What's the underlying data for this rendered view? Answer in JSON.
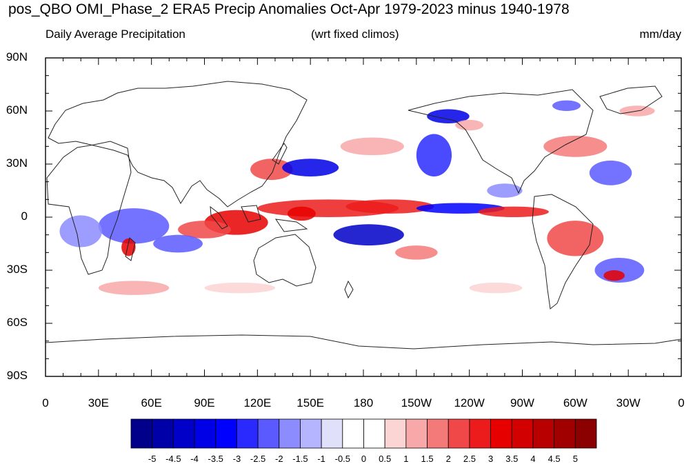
{
  "title": "pos_QBO OMI_Phase_2 ERA5 Precip Anomalies Oct-Apr 1979-2023 minus 1940-1978",
  "subtitle_left": "Daily Average Precipitation",
  "subtitle_center": "(wrt fixed climos)",
  "subtitle_right": "mm/day",
  "lat_ticks": [
    {
      "label": "90N",
      "lat": 90
    },
    {
      "label": "60N",
      "lat": 60
    },
    {
      "label": "30N",
      "lat": 30
    },
    {
      "label": "0",
      "lat": 0
    },
    {
      "label": "30S",
      "lat": -30
    },
    {
      "label": "60S",
      "lat": -60
    },
    {
      "label": "90S",
      "lat": -90
    }
  ],
  "lon_ticks": [
    {
      "label": "0",
      "lon": 0
    },
    {
      "label": "30E",
      "lon": 30
    },
    {
      "label": "60E",
      "lon": 60
    },
    {
      "label": "90E",
      "lon": 90
    },
    {
      "label": "120E",
      "lon": 120
    },
    {
      "label": "150E",
      "lon": 150
    },
    {
      "label": "180",
      "lon": 180
    },
    {
      "label": "150W",
      "lon": 210
    },
    {
      "label": "120W",
      "lon": 240
    },
    {
      "label": "90W",
      "lon": 270
    },
    {
      "label": "60W",
      "lon": 300
    },
    {
      "label": "30W",
      "lon": 330
    },
    {
      "label": "0",
      "lon": 360
    }
  ],
  "colorbar": {
    "colors": [
      "#00008b",
      "#0000a8",
      "#0000c8",
      "#0000e6",
      "#0000ff",
      "#2a2aff",
      "#5a5aff",
      "#8c8cff",
      "#b4b4ff",
      "#e0e0fa",
      "#ffffff",
      "#ffffff",
      "#fbd4d4",
      "#f8a8a8",
      "#f47a7a",
      "#f04848",
      "#ec1c1c",
      "#e60000",
      "#d20000",
      "#b80000",
      "#a00000",
      "#8b0000"
    ],
    "labels": [
      "-5",
      "-4.5",
      "-4",
      "-3.5",
      "-3",
      "-2.5",
      "-2",
      "-1.5",
      "-1",
      "-0.5",
      "0",
      "0.5",
      "1",
      "1.5",
      "2",
      "2.5",
      "3",
      "3.5",
      "4",
      "4.5",
      "5"
    ]
  },
  "anomalies": [
    {
      "lon": 160,
      "lat": 5,
      "rx": 40,
      "ry": 5,
      "color": "#ec1c1c"
    },
    {
      "lon": 195,
      "lat": 6,
      "rx": 25,
      "ry": 4,
      "color": "#ec1c1c"
    },
    {
      "lon": 108,
      "lat": -3,
      "rx": 18,
      "ry": 7,
      "color": "#e60000"
    },
    {
      "lon": 90,
      "lat": -7,
      "rx": 15,
      "ry": 5,
      "color": "#f04848"
    },
    {
      "lon": 128,
      "lat": 27,
      "rx": 12,
      "ry": 6,
      "color": "#f04848"
    },
    {
      "lon": 150,
      "lat": 28,
      "rx": 16,
      "ry": 5,
      "color": "#0000e6"
    },
    {
      "lon": 183,
      "lat": -10,
      "rx": 20,
      "ry": 6,
      "color": "#0000c8"
    },
    {
      "lon": 235,
      "lat": 5,
      "rx": 25,
      "ry": 3,
      "color": "#0000ff"
    },
    {
      "lon": 265,
      "lat": 3,
      "rx": 20,
      "ry": 3,
      "color": "#ec1c1c"
    },
    {
      "lon": 220,
      "lat": 35,
      "rx": 10,
      "ry": 12,
      "color": "#2a2aff"
    },
    {
      "lon": 228,
      "lat": 57,
      "rx": 12,
      "ry": 4,
      "color": "#0000e6"
    },
    {
      "lon": 50,
      "lat": -5,
      "rx": 20,
      "ry": 10,
      "color": "#5a5aff"
    },
    {
      "lon": 20,
      "lat": -8,
      "rx": 12,
      "ry": 9,
      "color": "#8c8cff"
    },
    {
      "lon": 47,
      "lat": -17,
      "rx": 4,
      "ry": 5,
      "color": "#e60000"
    },
    {
      "lon": 75,
      "lat": -15,
      "rx": 14,
      "ry": 5,
      "color": "#5a5aff"
    },
    {
      "lon": 300,
      "lat": -12,
      "rx": 16,
      "ry": 10,
      "color": "#f04848"
    },
    {
      "lon": 325,
      "lat": -30,
      "rx": 14,
      "ry": 7,
      "color": "#5a5aff"
    },
    {
      "lon": 322,
      "lat": -33,
      "rx": 6,
      "ry": 3,
      "color": "#e60000"
    },
    {
      "lon": 320,
      "lat": 25,
      "rx": 12,
      "ry": 7,
      "color": "#5a5aff"
    },
    {
      "lon": 300,
      "lat": 40,
      "rx": 18,
      "ry": 6,
      "color": "#f47a7a"
    },
    {
      "lon": 145,
      "lat": 2,
      "rx": 8,
      "ry": 4,
      "color": "#e60000"
    },
    {
      "lon": 210,
      "lat": -20,
      "rx": 12,
      "ry": 4,
      "color": "#f47a7a"
    },
    {
      "lon": 50,
      "lat": -40,
      "rx": 20,
      "ry": 4,
      "color": "#f8a8a8"
    },
    {
      "lon": 240,
      "lat": 52,
      "rx": 8,
      "ry": 3,
      "color": "#f8a8a8"
    },
    {
      "lon": 335,
      "lat": 60,
      "rx": 10,
      "ry": 3,
      "color": "#f8a8a8"
    },
    {
      "lon": 185,
      "lat": 40,
      "rx": 18,
      "ry": 5,
      "color": "#f8a8a8"
    },
    {
      "lon": 260,
      "lat": 15,
      "rx": 10,
      "ry": 4,
      "color": "#8c8cff"
    },
    {
      "lon": 295,
      "lat": 63,
      "rx": 8,
      "ry": 3,
      "color": "#5a5aff"
    },
    {
      "lon": 255,
      "lat": -40,
      "rx": 15,
      "ry": 3,
      "color": "#fbd4d4"
    },
    {
      "lon": 110,
      "lat": -40,
      "rx": 20,
      "ry": 3,
      "color": "#fbd4d4"
    }
  ]
}
